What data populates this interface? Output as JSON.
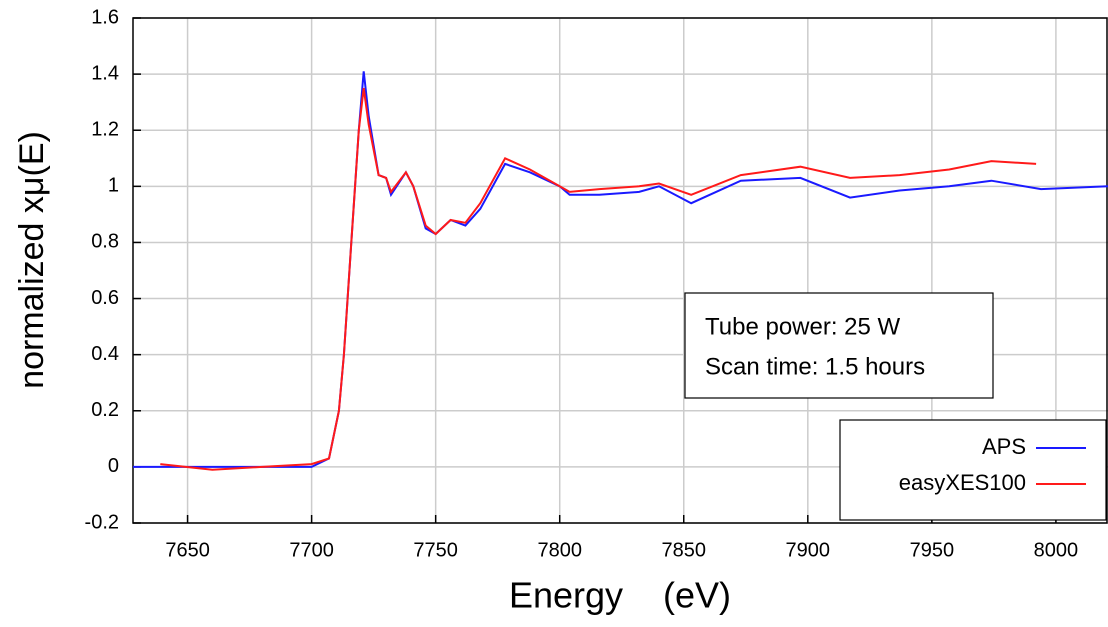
{
  "chart_data": {
    "type": "line",
    "xlabel": "Energy    (eV)",
    "ylabel": "normalized xμ(E)",
    "annotations": [
      "Tube power: 25 W",
      "Scan time: 1.5 hours"
    ],
    "xlim": [
      7628,
      8021
    ],
    "xticks": [
      7650,
      7700,
      7750,
      7800,
      7850,
      7900,
      7950,
      8000
    ],
    "ylim": [
      -0.2,
      1.6
    ],
    "yticks": [
      -0.2,
      0,
      0.2,
      0.4,
      0.6,
      0.8,
      1,
      1.2,
      1.4,
      1.6
    ],
    "grid": true,
    "legend": "lower right",
    "series": [
      {
        "name": "APS",
        "color": "#1a1aff",
        "x": [
          7628,
          7700,
          7707,
          7711,
          7713,
          7716,
          7719,
          7721,
          7723,
          7727,
          7730,
          7732,
          7738,
          7741,
          7746,
          7750,
          7756,
          7762,
          7768,
          7778,
          7788,
          7800,
          7804,
          7816,
          7832,
          7840,
          7853,
          7873,
          7897,
          7917,
          7937,
          7957,
          7974,
          7994,
          8021
        ],
        "values": [
          0,
          0,
          0.03,
          0.2,
          0.4,
          0.8,
          1.2,
          1.41,
          1.25,
          1.04,
          1.03,
          0.97,
          1.05,
          1.0,
          0.85,
          0.83,
          0.88,
          0.86,
          0.92,
          1.08,
          1.05,
          1.0,
          0.97,
          0.97,
          0.98,
          1.0,
          0.94,
          1.02,
          1.03,
          0.96,
          0.985,
          1.0,
          1.02,
          0.99,
          1.0
        ]
      },
      {
        "name": "easyXES100",
        "color": "#ff1a1a",
        "x": [
          7639,
          7660,
          7680,
          7700,
          7707,
          7711,
          7713,
          7716,
          7719,
          7721,
          7723,
          7727,
          7730,
          7732,
          7738,
          7741,
          7746,
          7750,
          7756,
          7762,
          7768,
          7778,
          7788,
          7800,
          7804,
          7816,
          7832,
          7840,
          7853,
          7873,
          7897,
          7917,
          7937,
          7957,
          7974,
          7992
        ],
        "values": [
          0.01,
          -0.01,
          0,
          0.01,
          0.03,
          0.2,
          0.4,
          0.8,
          1.2,
          1.35,
          1.22,
          1.04,
          1.03,
          0.98,
          1.05,
          1.0,
          0.86,
          0.83,
          0.88,
          0.87,
          0.94,
          1.1,
          1.06,
          1.0,
          0.98,
          0.99,
          1.0,
          1.01,
          0.97,
          1.04,
          1.07,
          1.03,
          1.04,
          1.06,
          1.09,
          1.08
        ]
      }
    ]
  }
}
